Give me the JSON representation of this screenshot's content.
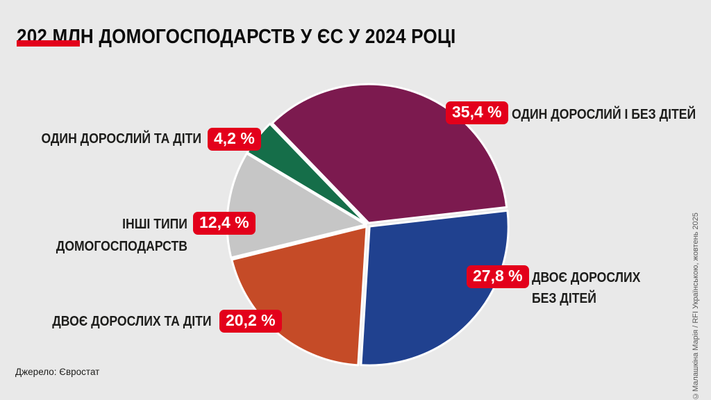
{
  "title": "202 МЛН ДОМОГОСПОДАРСТВ У ЄС У 2024 РОЦІ",
  "source": "Джерело: Євростат",
  "credit": "©Малашкіна Марія / RFI Українською, жовтень 2025",
  "colors": {
    "background": "#e9e9e9",
    "accent_red": "#e3001b",
    "text_dark": "#1d1d1b",
    "credit_gray": "#5a5a5a",
    "slice_gap_white": "#ffffff"
  },
  "chart_data": {
    "type": "pie",
    "title": "202 МЛН ДОМОГОСПОДАРСТВ У ЄС У 2024 РОЦІ",
    "unit": "%",
    "total_label": "202 млн домогосподарств",
    "start_angle_deg_clockwise_from_north": -44,
    "slices": [
      {
        "label": "ОДИН ДОРОСЛИЙ І БЕЗ ДІТЕЙ",
        "label_lines": [
          "ОДИН ДОРОСЛИЙ І БЕЗ ДІТЕЙ"
        ],
        "value": 35.4,
        "pct_label": "35,4 %",
        "color": "#7c1a4f"
      },
      {
        "label": "ДВОЄ ДОРОСЛИХ БЕЗ ДІТЕЙ",
        "label_lines": [
          "ДВОЄ ДОРОСЛИХ",
          "БЕЗ ДІТЕЙ"
        ],
        "value": 27.8,
        "pct_label": "27,8 %",
        "color": "#20418f"
      },
      {
        "label": "ДВОЄ ДОРОСЛИХ ТА ДІТИ",
        "label_lines": [
          "ДВОЄ ДОРОСЛИХ ТА ДІТИ"
        ],
        "value": 20.2,
        "pct_label": "20,2 %",
        "color": "#c54b27"
      },
      {
        "label": "ІНШІ ТИПИ ДОМОГОСПОДАРСТВ",
        "label_lines": [
          "ІНШІ ТИПИ",
          "ДОМОГОСПОДАРСТВ"
        ],
        "value": 12.4,
        "pct_label": "12,4 %",
        "color": "#c6c6c6"
      },
      {
        "label": "ОДИН ДОРОСЛИЙ ТА ДІТИ",
        "label_lines": [
          "ОДИН ДОРОСЛИЙ ТА ДІТИ"
        ],
        "value": 4.2,
        "pct_label": "4,2 %",
        "color": "#156e49"
      }
    ]
  }
}
